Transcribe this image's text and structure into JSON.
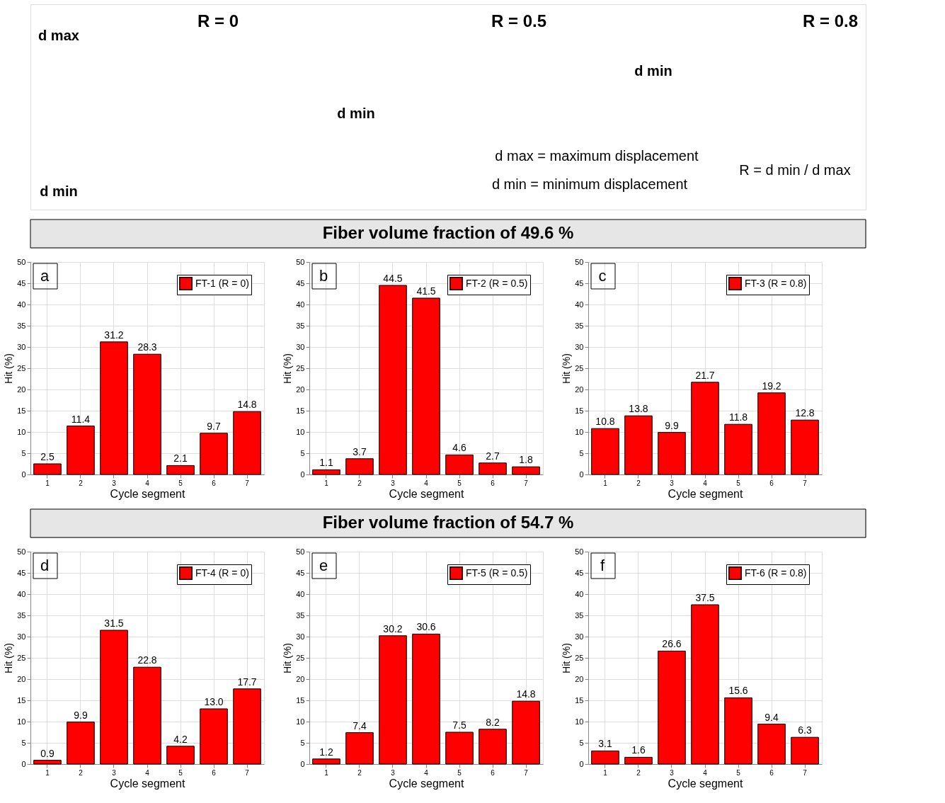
{
  "chart_data": [
    {
      "type": "other",
      "annotations": [
        "R = 0",
        "R = 0.5",
        "R = 0.8",
        "d max",
        "d min",
        "d min",
        "d min",
        "d max = maximum displacement",
        "d min = minimum displacement",
        "R = d min / d max"
      ]
    },
    {
      "type": "other",
      "title": "Fiber volume fraction of 49.6 %"
    },
    {
      "type": "bar",
      "categories": [
        "1",
        "2",
        "3",
        "4",
        "5",
        "6",
        "7"
      ],
      "series": [
        {
          "name": "FT-1 (R = 0)",
          "color": "#ff0000",
          "values": [
            2.5,
            11.4,
            31.2,
            28.3,
            2.1,
            9.7,
            14.8
          ]
        }
      ],
      "xlabel": "Cycle segment",
      "ylabel": "Hit (%)",
      "ylim": [
        0,
        50
      ],
      "yticks": [
        0,
        5,
        10,
        15,
        20,
        25,
        30,
        35,
        40,
        45,
        50
      ],
      "grid": true,
      "legend": "top right",
      "data_labels": true,
      "annotations": [
        "a"
      ]
    },
    {
      "type": "bar",
      "categories": [
        "1",
        "2",
        "3",
        "4",
        "5",
        "6",
        "7"
      ],
      "series": [
        {
          "name": "FT-2 (R = 0.5)",
          "color": "#ff0000",
          "values": [
            1.1,
            3.7,
            44.5,
            41.5,
            4.6,
            2.7,
            1.8
          ]
        }
      ],
      "xlabel": "Cycle segment",
      "ylabel": "Hit (%)",
      "ylim": [
        0,
        50
      ],
      "yticks": [
        0,
        5,
        10,
        15,
        20,
        25,
        30,
        35,
        40,
        45,
        50
      ],
      "grid": true,
      "legend": "top right",
      "data_labels": true,
      "annotations": [
        "b"
      ]
    },
    {
      "type": "bar",
      "categories": [
        "1",
        "2",
        "3",
        "4",
        "5",
        "6",
        "7"
      ],
      "series": [
        {
          "name": "FT-3 (R = 0.8)",
          "color": "#ff0000",
          "values": [
            10.8,
            13.8,
            9.9,
            21.7,
            11.8,
            19.2,
            12.8
          ]
        }
      ],
      "xlabel": "Cycle segment",
      "ylabel": "Hit (%)",
      "ylim": [
        0,
        50
      ],
      "yticks": [
        0,
        5,
        10,
        15,
        20,
        25,
        30,
        35,
        40,
        45,
        50
      ],
      "grid": true,
      "legend": "top right",
      "data_labels": true,
      "annotations": [
        "c"
      ]
    },
    {
      "type": "other",
      "title": "Fiber volume fraction of 54.7 %"
    },
    {
      "type": "bar",
      "categories": [
        "1",
        "2",
        "3",
        "4",
        "5",
        "6",
        "7"
      ],
      "series": [
        {
          "name": "FT-4 (R = 0)",
          "color": "#ff0000",
          "values": [
            0.9,
            9.9,
            31.5,
            22.8,
            4.2,
            13.0,
            17.7
          ],
          "value_labels": [
            "0.9",
            "9.9",
            "31.5",
            "22.8",
            "4.2",
            "13.0",
            "17.7"
          ]
        }
      ],
      "xlabel": "Cycle segment",
      "ylabel": "Hit (%)",
      "ylim": [
        0,
        50
      ],
      "yticks": [
        0,
        5,
        10,
        15,
        20,
        25,
        30,
        35,
        40,
        45,
        50
      ],
      "grid": true,
      "legend": "top right",
      "annotations": [
        "d"
      ]
    },
    {
      "type": "bar",
      "categories": [
        "1",
        "2",
        "3",
        "4",
        "5",
        "6",
        "7"
      ],
      "series": [
        {
          "name": "FT-5 (R = 0.5)",
          "color": "#ff0000",
          "values": [
            1.2,
            7.4,
            30.2,
            30.6,
            7.5,
            8.2,
            14.8
          ]
        }
      ],
      "xlabel": "Cycle segment",
      "ylabel": "Hit (%)",
      "ylim": [
        0,
        50
      ],
      "yticks": [
        0,
        5,
        10,
        15,
        20,
        25,
        30,
        35,
        40,
        45,
        50
      ],
      "grid": true,
      "legend": "top right",
      "data_labels": true,
      "annotations": [
        "e"
      ]
    },
    {
      "type": "bar",
      "categories": [
        "1",
        "2",
        "3",
        "4",
        "5",
        "6",
        "7"
      ],
      "series": [
        {
          "name": "FT-6 (R = 0.8)",
          "color": "#ff0000",
          "values": [
            3.1,
            1.6,
            26.6,
            37.5,
            15.6,
            9.4,
            6.3
          ]
        }
      ],
      "xlabel": "Cycle segment",
      "ylabel": "Hit (%)",
      "ylim": [
        0,
        50
      ],
      "yticks": [
        0,
        5,
        10,
        15,
        20,
        25,
        30,
        35,
        40,
        45,
        50
      ],
      "grid": true,
      "legend": "top right",
      "data_labels": true,
      "annotations": [
        "f"
      ]
    }
  ]
}
